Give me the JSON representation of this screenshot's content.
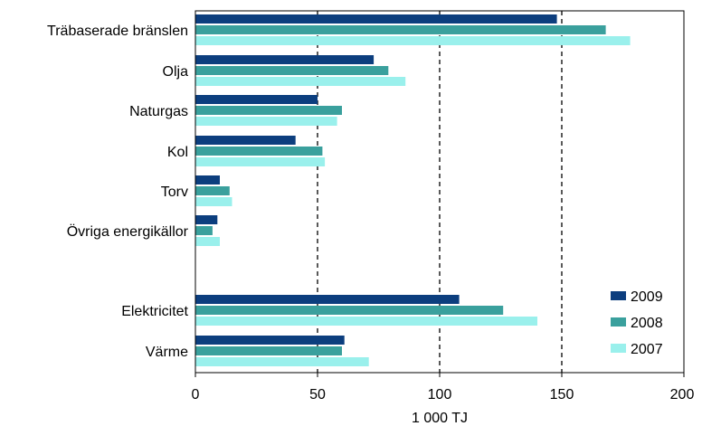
{
  "chart_data": {
    "type": "bar",
    "orientation": "horizontal",
    "title": "",
    "xlabel": "1 000 TJ",
    "ylabel": "",
    "xlim": [
      0,
      200
    ],
    "xticks": [
      0,
      50,
      100,
      150,
      200
    ],
    "grid": "vertical dashed at 50, 100, 150",
    "legend_position": "bottom-right",
    "categories": [
      "Träbaserade bränslen",
      "Olja",
      "Naturgas",
      "Kol",
      "Torv",
      "Övriga energikällor",
      "Elektricitet",
      "Värme"
    ],
    "series": [
      {
        "name": "2009",
        "color": "#0c3e7e",
        "values": [
          148,
          73,
          50,
          41,
          10,
          9,
          108,
          61
        ]
      },
      {
        "name": "2008",
        "color": "#3aa09d",
        "values": [
          168,
          79,
          60,
          52,
          14,
          7,
          126,
          60
        ]
      },
      {
        "name": "2007",
        "color": "#9af0ec",
        "values": [
          178,
          86,
          58,
          53,
          15,
          10,
          140,
          71
        ]
      }
    ]
  }
}
